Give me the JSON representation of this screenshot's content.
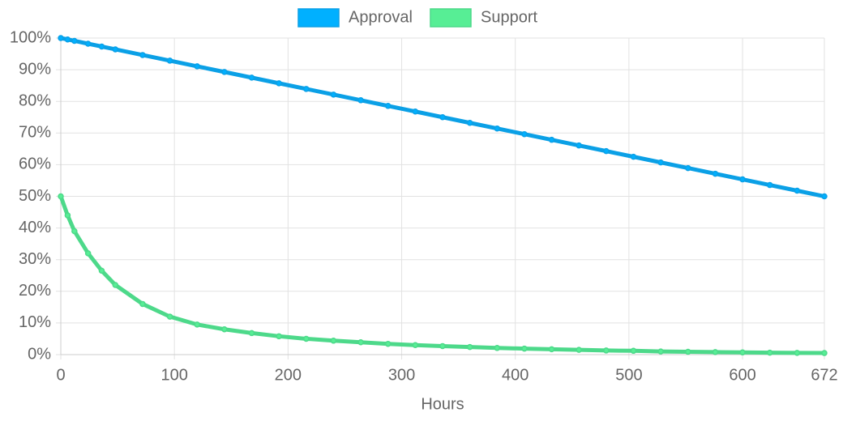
{
  "chart_data": {
    "type": "line",
    "x_label": "Hours",
    "x": [
      0,
      6,
      12,
      24,
      36,
      48,
      72,
      96,
      120,
      144,
      168,
      192,
      216,
      240,
      264,
      288,
      312,
      336,
      360,
      384,
      408,
      432,
      456,
      480,
      504,
      528,
      552,
      576,
      600,
      624,
      648,
      672
    ],
    "series": [
      {
        "name": "Approval",
        "color": "#0ba0e6",
        "legend_color": "#00b0ff",
        "values": [
          100,
          99.55,
          99.11,
          98.21,
          97.32,
          96.43,
          94.64,
          92.86,
          91.07,
          89.29,
          87.5,
          85.71,
          83.93,
          82.14,
          80.36,
          78.57,
          76.79,
          75,
          73.21,
          71.43,
          69.64,
          67.86,
          66.07,
          64.29,
          62.5,
          60.71,
          58.93,
          57.14,
          55.36,
          53.57,
          51.79,
          50
        ]
      },
      {
        "name": "Support",
        "color": "#4dd98a",
        "legend_color": "#57ee95",
        "values": [
          50,
          44,
          39,
          32,
          26.5,
          22,
          16,
          12,
          9.5,
          8,
          6.8,
          5.8,
          5,
          4.4,
          3.9,
          3.4,
          3,
          2.7,
          2.4,
          2.1,
          1.9,
          1.7,
          1.5,
          1.3,
          1.2,
          1.0,
          0.9,
          0.8,
          0.7,
          0.6,
          0.55,
          0.5
        ]
      }
    ],
    "xlim": [
      0,
      672
    ],
    "xticks": [
      0,
      100,
      200,
      300,
      400,
      500,
      600,
      672
    ],
    "ylim": [
      0,
      100
    ],
    "yticks": [
      {
        "value": 0,
        "label": "0%"
      },
      {
        "value": 10,
        "label": "10%"
      },
      {
        "value": 20,
        "label": "20%"
      },
      {
        "value": 30,
        "label": "30%"
      },
      {
        "value": 40,
        "label": "40%"
      },
      {
        "value": 50,
        "label": "50%"
      },
      {
        "value": 60,
        "label": "60%"
      },
      {
        "value": 70,
        "label": "70%"
      },
      {
        "value": 80,
        "label": "80%"
      },
      {
        "value": 90,
        "label": "90%"
      },
      {
        "value": 100,
        "label": "100%"
      }
    ],
    "grid": true
  }
}
